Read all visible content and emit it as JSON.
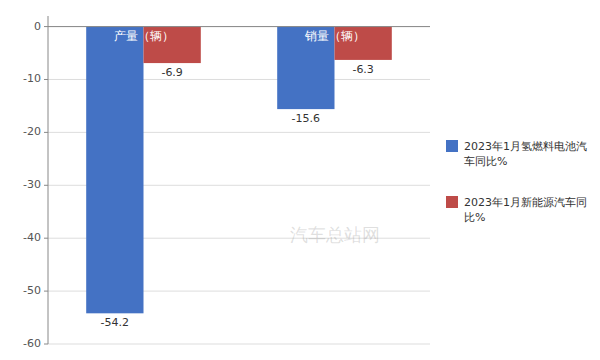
{
  "chart_data": {
    "type": "bar",
    "categories": [
      "产量（辆）",
      "销量（辆）"
    ],
    "series": [
      {
        "name": "2023年1月氢燃料电池汽\n车同比%",
        "color": "#4472C4",
        "values": [
          -54.2,
          -15.6
        ]
      },
      {
        "name": "2023年1月新能源汽车同\n比%",
        "color": "#BE4B48",
        "values": [
          -6.9,
          -6.3
        ]
      }
    ],
    "ylim": [
      -60,
      2
    ],
    "yticks": [
      0,
      -10,
      -20,
      -30,
      -40,
      -50,
      -60
    ],
    "grid": true,
    "data_labels": true,
    "legend": "right",
    "annotations": [
      "汽车总站网"
    ]
  }
}
